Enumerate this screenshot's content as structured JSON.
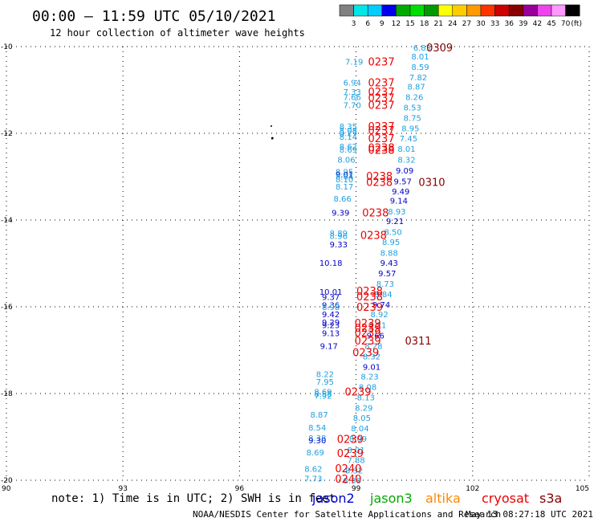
{
  "title": "00:00 — 11:59 UTC 05/10/2021",
  "subtitle": "12 hour collection of altimeter wave heights",
  "note": "note:  1) Time is in UTC;  2) SWH is in feet",
  "credit_left": "NOAA/NESDIS Center for Satellite Applications and Research",
  "credit_right": "May 13 08:27:18 UTC 2021",
  "satellites": [
    {
      "name": "jason2",
      "color": "#0000cc"
    },
    {
      "name": "jason3",
      "color": "#00aa00"
    },
    {
      "name": "altika",
      "color": "#ff8800"
    },
    {
      "name": "cryosat",
      "color": "#ee0000"
    },
    {
      "name": "s3a",
      "color": "#880000"
    }
  ],
  "chart_data": {
    "type": "scatter",
    "xlim": [
      90,
      105
    ],
    "ylim": [
      -20,
      -10
    ],
    "x_ticks": [
      "90",
      "93",
      "96",
      "99",
      "102",
      "105"
    ],
    "y_ticks": [
      "-10",
      "-12",
      "-14",
      "-16",
      "-18",
      "-20"
    ],
    "grid": true,
    "legend": {
      "unit": "(ft)",
      "ticks": [
        "3",
        "6",
        "9",
        "12",
        "15",
        "18",
        "21",
        "24",
        "27",
        "30",
        "33",
        "36",
        "39",
        "42",
        "45",
        "70"
      ],
      "colors": [
        "#808080",
        "#00e5e5",
        "#00ccff",
        "#0000ee",
        "#00aa00",
        "#00dd00",
        "#009900",
        "#ffff00",
        "#ffcc00",
        "#ff9900",
        "#ff3300",
        "#cc0000",
        "#880000",
        "#990099",
        "#ee44ee",
        "#ff99ff",
        "#000000"
      ]
    },
    "pass_labels": [
      {
        "text": "0309",
        "lon": 101.15,
        "lat": -10.02,
        "color": "#880000"
      },
      {
        "text": "0237",
        "lon": 99.65,
        "lat": -10.34,
        "color": "#ee0000"
      },
      {
        "text": "0237",
        "lon": 99.65,
        "lat": -10.82,
        "color": "#ee0000"
      },
      {
        "text": "0237",
        "lon": 99.65,
        "lat": -11.04,
        "color": "#ee0000"
      },
      {
        "text": "0237",
        "lon": 99.65,
        "lat": -11.18,
        "color": "#ee0000"
      },
      {
        "text": "0237",
        "lon": 99.65,
        "lat": -11.34,
        "color": "#ee0000"
      },
      {
        "text": "0237",
        "lon": 99.65,
        "lat": -11.83,
        "color": "#ee0000"
      },
      {
        "text": "0237",
        "lon": 99.65,
        "lat": -11.93,
        "color": "#ee0000"
      },
      {
        "text": "0237",
        "lon": 99.65,
        "lat": -12.11,
        "color": "#ee0000"
      },
      {
        "text": "0238",
        "lon": 99.65,
        "lat": -12.32,
        "color": "#ee0000"
      },
      {
        "text": "0238",
        "lon": 99.65,
        "lat": -12.38,
        "color": "#ee0000"
      },
      {
        "text": "0238",
        "lon": 99.6,
        "lat": -12.98,
        "color": "#ee0000"
      },
      {
        "text": "0238",
        "lon": 99.6,
        "lat": -13.12,
        "color": "#ee0000"
      },
      {
        "text": "0310",
        "lon": 100.95,
        "lat": -13.12,
        "color": "#880000"
      },
      {
        "text": "0238",
        "lon": 99.5,
        "lat": -13.82,
        "color": "#ee0000"
      },
      {
        "text": "0238",
        "lon": 99.45,
        "lat": -14.34,
        "color": "#ee0000"
      },
      {
        "text": "0238",
        "lon": 99.35,
        "lat": -15.63,
        "color": "#ee0000"
      },
      {
        "text": "0238",
        "lon": 99.35,
        "lat": -15.76,
        "color": "#ee0000"
      },
      {
        "text": "0239",
        "lon": 99.35,
        "lat": -16.0,
        "color": "#ee0000"
      },
      {
        "text": "0239",
        "lon": 99.3,
        "lat": -16.37,
        "color": "#ee0000"
      },
      {
        "text": "0239",
        "lon": 99.3,
        "lat": -16.48,
        "color": "#ee0000"
      },
      {
        "text": "0239",
        "lon": 99.3,
        "lat": -16.59,
        "color": "#ee0000"
      },
      {
        "text": "0239",
        "lon": 99.3,
        "lat": -16.78,
        "color": "#ee0000"
      },
      {
        "text": "0311",
        "lon": 100.6,
        "lat": -16.78,
        "color": "#880000"
      },
      {
        "text": "0239",
        "lon": 99.25,
        "lat": -17.05,
        "color": "#ee0000"
      },
      {
        "text": "0239",
        "lon": 99.05,
        "lat": -17.95,
        "color": "#ee0000"
      },
      {
        "text": "0239",
        "lon": 98.85,
        "lat": -19.05,
        "color": "#ee0000"
      },
      {
        "text": "0239",
        "lon": 98.85,
        "lat": -19.37,
        "color": "#ee0000"
      },
      {
        "text": "0240",
        "lon": 98.8,
        "lat": -19.72,
        "color": "#ee0000"
      },
      {
        "text": "0240",
        "lon": 98.8,
        "lat": -19.96,
        "color": "#ee0000"
      }
    ],
    "swh_values": [
      {
        "text": "6.83",
        "lon": 100.7,
        "lat": -10.02,
        "color": "#1ea0e0"
      },
      {
        "text": "8.01",
        "lon": 100.65,
        "lat": -10.22,
        "color": "#1ea0e0"
      },
      {
        "text": "8.59",
        "lon": 100.65,
        "lat": -10.46,
        "color": "#1ea0e0"
      },
      {
        "text": "7.19",
        "lon": 98.95,
        "lat": -10.34,
        "color": "#1ea0e0"
      },
      {
        "text": "7.82",
        "lon": 100.6,
        "lat": -10.7,
        "color": "#1ea0e0"
      },
      {
        "text": "6.94",
        "lon": 98.9,
        "lat": -10.82,
        "color": "#1ea0e0"
      },
      {
        "text": "8.87",
        "lon": 100.55,
        "lat": -10.92,
        "color": "#1ea0e0"
      },
      {
        "text": "7.33",
        "lon": 98.9,
        "lat": -11.04,
        "color": "#1ea0e0"
      },
      {
        "text": "7.66",
        "lon": 98.9,
        "lat": -11.16,
        "color": "#1ea0e0"
      },
      {
        "text": "8.26",
        "lon": 100.5,
        "lat": -11.16,
        "color": "#1ea0e0"
      },
      {
        "text": "7.70",
        "lon": 98.9,
        "lat": -11.34,
        "color": "#1ea0e0"
      },
      {
        "text": "8.53",
        "lon": 100.45,
        "lat": -11.4,
        "color": "#1ea0e0"
      },
      {
        "text": "8.75",
        "lon": 100.45,
        "lat": -11.64,
        "color": "#1ea0e0"
      },
      {
        "text": "8.35",
        "lon": 98.8,
        "lat": -11.83,
        "color": "#1ea0e0"
      },
      {
        "text": "8.95",
        "lon": 100.4,
        "lat": -11.88,
        "color": "#1ea0e0"
      },
      {
        "text": "8.08",
        "lon": 98.8,
        "lat": -11.93,
        "color": "#1ea0e0"
      },
      {
        "text": "8.27",
        "lon": 98.8,
        "lat": -11.99,
        "color": "#1ea0e0"
      },
      {
        "text": "8.14",
        "lon": 98.8,
        "lat": -12.07,
        "color": "#1ea0e0"
      },
      {
        "text": "7.45",
        "lon": 100.35,
        "lat": -12.11,
        "color": "#1ea0e0"
      },
      {
        "text": "8.62",
        "lon": 98.8,
        "lat": -12.3,
        "color": "#1ea0e0"
      },
      {
        "text": "8.69",
        "lon": 98.8,
        "lat": -12.37,
        "color": "#1ea0e0"
      },
      {
        "text": "8.01",
        "lon": 100.3,
        "lat": -12.35,
        "color": "#1ea0e0"
      },
      {
        "text": "8.06",
        "lon": 98.75,
        "lat": -12.6,
        "color": "#1ea0e0"
      },
      {
        "text": "8.32",
        "lon": 100.3,
        "lat": -12.6,
        "color": "#1ea0e0"
      },
      {
        "text": "9.09",
        "lon": 100.25,
        "lat": -12.85,
        "color": "#0000cc"
      },
      {
        "text": "8.95",
        "lon": 98.7,
        "lat": -12.88,
        "color": "#1ea0e0"
      },
      {
        "text": "9.01",
        "lon": 98.7,
        "lat": -12.94,
        "color": "#0000cc"
      },
      {
        "text": "8.64",
        "lon": 98.7,
        "lat": -12.99,
        "color": "#1ea0e0"
      },
      {
        "text": "8.10",
        "lon": 98.7,
        "lat": -13.06,
        "color": "#1ea0e0"
      },
      {
        "text": "9.57",
        "lon": 100.2,
        "lat": -13.1,
        "color": "#0000cc"
      },
      {
        "text": "8.17",
        "lon": 98.7,
        "lat": -13.22,
        "color": "#1ea0e0"
      },
      {
        "text": "9.49",
        "lon": 100.15,
        "lat": -13.33,
        "color": "#0000cc"
      },
      {
        "text": "8.66",
        "lon": 98.65,
        "lat": -13.5,
        "color": "#1ea0e0"
      },
      {
        "text": "9.14",
        "lon": 100.1,
        "lat": -13.55,
        "color": "#0000cc"
      },
      {
        "text": "9.39",
        "lon": 98.6,
        "lat": -13.82,
        "color": "#0000cc"
      },
      {
        "text": "8.93",
        "lon": 100.05,
        "lat": -13.8,
        "color": "#1ea0e0"
      },
      {
        "text": "9.21",
        "lon": 100.0,
        "lat": -14.02,
        "color": "#0000cc"
      },
      {
        "text": "8.50",
        "lon": 99.95,
        "lat": -14.27,
        "color": "#1ea0e0"
      },
      {
        "text": "8.89",
        "lon": 98.55,
        "lat": -14.3,
        "color": "#1ea0e0"
      },
      {
        "text": "8.96",
        "lon": 98.55,
        "lat": -14.36,
        "color": "#1ea0e0"
      },
      {
        "text": "8.95",
        "lon": 99.9,
        "lat": -14.5,
        "color": "#1ea0e0"
      },
      {
        "text": "9.33",
        "lon": 98.55,
        "lat": -14.56,
        "color": "#0000cc"
      },
      {
        "text": "8.88",
        "lon": 99.85,
        "lat": -14.75,
        "color": "#1ea0e0"
      },
      {
        "text": "9.43",
        "lon": 99.85,
        "lat": -14.98,
        "color": "#0000cc"
      },
      {
        "text": "10.18",
        "lon": 98.35,
        "lat": -14.98,
        "color": "#0000cc"
      },
      {
        "text": "9.57",
        "lon": 99.8,
        "lat": -15.22,
        "color": "#0000cc"
      },
      {
        "text": "8.73",
        "lon": 99.75,
        "lat": -15.46,
        "color": "#1ea0e0"
      },
      {
        "text": "10.01",
        "lon": 98.35,
        "lat": -15.65,
        "color": "#0000cc"
      },
      {
        "text": "8.84",
        "lon": 99.7,
        "lat": -15.7,
        "color": "#1ea0e0"
      },
      {
        "text": "9.37",
        "lon": 98.35,
        "lat": -15.77,
        "color": "#0000cc"
      },
      {
        "text": "9.74",
        "lon": 99.65,
        "lat": -15.94,
        "color": "#0000cc"
      },
      {
        "text": "9.36",
        "lon": 98.35,
        "lat": -15.95,
        "color": "#0000cc"
      },
      {
        "text": "8.98",
        "lon": 98.35,
        "lat": -16.0,
        "color": "#1ea0e0"
      },
      {
        "text": "8.92",
        "lon": 99.6,
        "lat": -16.17,
        "color": "#1ea0e0"
      },
      {
        "text": "9.42",
        "lon": 98.35,
        "lat": -16.17,
        "color": "#0000cc"
      },
      {
        "text": "9.29",
        "lon": 98.35,
        "lat": -16.35,
        "color": "#0000cc"
      },
      {
        "text": "9.23",
        "lon": 98.35,
        "lat": -16.42,
        "color": "#0000cc"
      },
      {
        "text": "8.21",
        "lon": 99.55,
        "lat": -16.42,
        "color": "#1ea0e0"
      },
      {
        "text": "9.13",
        "lon": 98.35,
        "lat": -16.6,
        "color": "#0000cc"
      },
      {
        "text": "9.66",
        "lon": 99.5,
        "lat": -16.66,
        "color": "#0000cc"
      },
      {
        "text": "8.28",
        "lon": 99.45,
        "lat": -16.9,
        "color": "#1ea0e0"
      },
      {
        "text": "9.17",
        "lon": 98.3,
        "lat": -16.9,
        "color": "#0000cc"
      },
      {
        "text": "8.32",
        "lon": 99.4,
        "lat": -17.14,
        "color": "#1ea0e0"
      },
      {
        "text": "9.01",
        "lon": 99.4,
        "lat": -17.38,
        "color": "#0000cc"
      },
      {
        "text": "8.22",
        "lon": 98.2,
        "lat": -17.55,
        "color": "#1ea0e0"
      },
      {
        "text": "8.23",
        "lon": 99.35,
        "lat": -17.6,
        "color": "#1ea0e0"
      },
      {
        "text": "7.95",
        "lon": 98.2,
        "lat": -17.72,
        "color": "#1ea0e0"
      },
      {
        "text": "8.08",
        "lon": 99.3,
        "lat": -17.84,
        "color": "#1ea0e0"
      },
      {
        "text": "8.69",
        "lon": 98.15,
        "lat": -17.95,
        "color": "#1ea0e0"
      },
      {
        "text": "8.58",
        "lon": 98.15,
        "lat": -18.0,
        "color": "#1ea0e0"
      },
      {
        "text": "7.92",
        "lon": 98.15,
        "lat": -18.05,
        "color": "#1ea0e0"
      },
      {
        "text": "8.13",
        "lon": 99.25,
        "lat": -18.08,
        "color": "#1ea0e0"
      },
      {
        "text": "8.29",
        "lon": 99.2,
        "lat": -18.32,
        "color": "#1ea0e0"
      },
      {
        "text": "8.87",
        "lon": 98.05,
        "lat": -18.48,
        "color": "#1ea0e0"
      },
      {
        "text": "8.05",
        "lon": 99.15,
        "lat": -18.56,
        "color": "#1ea0e0"
      },
      {
        "text": "8.54",
        "lon": 98.0,
        "lat": -18.78,
        "color": "#1ea0e0"
      },
      {
        "text": "8.04",
        "lon": 99.1,
        "lat": -18.8,
        "color": "#1ea0e0"
      },
      {
        "text": "8.38",
        "lon": 98.0,
        "lat": -19.02,
        "color": "#1ea0e0"
      },
      {
        "text": "9.30",
        "lon": 98.0,
        "lat": -19.07,
        "color": "#0000cc"
      },
      {
        "text": "8.09",
        "lon": 99.05,
        "lat": -19.04,
        "color": "#1ea0e0"
      },
      {
        "text": "8.69",
        "lon": 97.95,
        "lat": -19.35,
        "color": "#1ea0e0"
      },
      {
        "text": "8.01",
        "lon": 99.0,
        "lat": -19.3,
        "color": "#1ea0e0"
      },
      {
        "text": "7.88",
        "lon": 99.0,
        "lat": -19.53,
        "color": "#1ea0e0"
      },
      {
        "text": "8.62",
        "lon": 97.9,
        "lat": -19.73,
        "color": "#1ea0e0"
      },
      {
        "text": "8.32",
        "lon": 98.95,
        "lat": -19.77,
        "color": "#1ea0e0"
      },
      {
        "text": "7.73",
        "lon": 97.9,
        "lat": -19.95,
        "color": "#1ea0e0"
      },
      {
        "text": "8.36",
        "lon": 98.9,
        "lat": -20.0,
        "color": "#1ea0e0"
      }
    ]
  }
}
